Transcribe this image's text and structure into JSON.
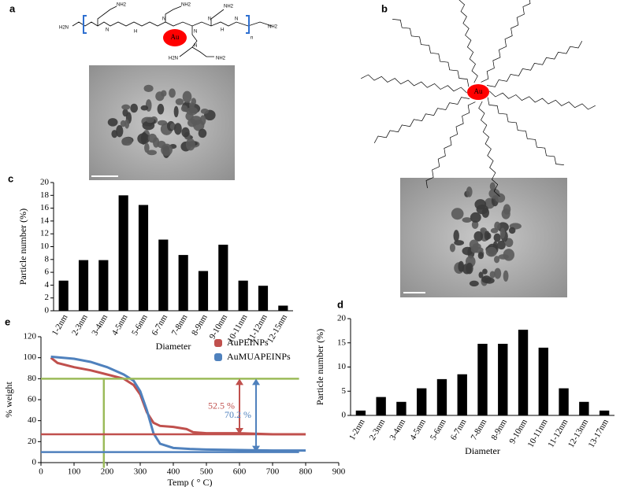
{
  "panel_labels": [
    "a",
    "b",
    "c",
    "d",
    "e"
  ],
  "structures": {
    "a": {
      "center": "Au",
      "labels": [
        "H2N",
        "NH2",
        "N",
        "H",
        "N",
        "NH2",
        "N",
        "NH2",
        "H",
        "N",
        "n",
        "NH2",
        "N",
        "H2N",
        "N",
        "NH2"
      ]
    },
    "b": {
      "center": "Au"
    }
  },
  "chart_data": [
    {
      "type": "bar",
      "categories": [
        "1-2nm",
        "2-3nm",
        "3-4nm",
        "4-5nm",
        "5-6nm",
        "6-7nm",
        "7-8nm",
        "8-9nm",
        "9-10nm",
        "10-11nm",
        "11-12nm",
        "12-15nm"
      ],
      "values": [
        4.7,
        7.9,
        7.9,
        18,
        16.5,
        11.1,
        8.7,
        6.2,
        10.3,
        4.7,
        3.9,
        0.8
      ],
      "color": "#000000",
      "xlabel": "Diameter",
      "ylabel": "Particle number (%)",
      "ylim": [
        0,
        20
      ],
      "yticks": [
        0,
        2,
        4,
        6,
        8,
        10,
        12,
        14,
        16,
        18,
        20
      ]
    },
    {
      "type": "bar",
      "categories": [
        "1-2nm",
        "2-3nm",
        "3-4nm",
        "4-5nm",
        "5-6nm",
        "6-7nm",
        "7-8nm",
        "8-9nm",
        "9-10nm",
        "10-11nm",
        "11-12nm",
        "12-13nm",
        "13-17nm"
      ],
      "values": [
        1,
        3.8,
        2.8,
        5.6,
        7.5,
        8.5,
        14.8,
        14.8,
        17.7,
        14,
        5.6,
        2.8,
        1
      ],
      "color": "#000000",
      "xlabel": "Diameter",
      "ylabel": "Particle number (%)",
      "ylim": [
        0,
        20
      ],
      "yticks": [
        0,
        5,
        10,
        15,
        20
      ]
    },
    {
      "type": "line",
      "xlabel": "Temp ( ° C)",
      "ylabel": "% weight",
      "xlim": [
        0,
        900
      ],
      "xticks": [
        0,
        100,
        200,
        300,
        400,
        500,
        600,
        700,
        800,
        900
      ],
      "ylim": [
        0,
        120
      ],
      "yticks": [
        0,
        20,
        40,
        60,
        80,
        100,
        120
      ],
      "legend": "upper right",
      "series": [
        {
          "name": "AuPEINPs",
          "color": "#c0504d",
          "x": [
            30,
            50,
            100,
            150,
            200,
            250,
            280,
            300,
            320,
            340,
            360,
            400,
            440,
            460,
            500,
            600,
            700,
            800
          ],
          "values": [
            100,
            95,
            91,
            88,
            84,
            80,
            74,
            65,
            48,
            38,
            35,
            34,
            32,
            29,
            28,
            28,
            27,
            27
          ]
        },
        {
          "name": "AuMUAPEINPs",
          "color": "#4f81bd",
          "x": [
            30,
            100,
            150,
            200,
            250,
            280,
            300,
            320,
            340,
            360,
            400,
            450,
            500,
            600,
            700,
            800
          ],
          "values": [
            101,
            99,
            96,
            91,
            84,
            78,
            68,
            50,
            28,
            18,
            14,
            13,
            12.5,
            12,
            11.5,
            11.5
          ]
        }
      ],
      "reference_lines": [
        {
          "axis": "y",
          "value": 80,
          "from": 0,
          "to": 780,
          "color": "#9bbb59"
        },
        {
          "axis": "x",
          "value": 190,
          "from": -5,
          "to": 80,
          "color": "#9bbb59"
        },
        {
          "axis": "y",
          "value": 27,
          "from": 0,
          "to": 800,
          "color": "#c0504d"
        },
        {
          "axis": "y",
          "value": 10,
          "from": 0,
          "to": 780,
          "color": "#4f81bd"
        }
      ],
      "arrows": [
        {
          "x": 600,
          "from": 27,
          "to": 80,
          "color": "#c0504d",
          "label": "52.5 %"
        },
        {
          "x": 650,
          "from": 10,
          "to": 80,
          "color": "#4f81bd",
          "label": "70.2 %"
        }
      ]
    }
  ]
}
